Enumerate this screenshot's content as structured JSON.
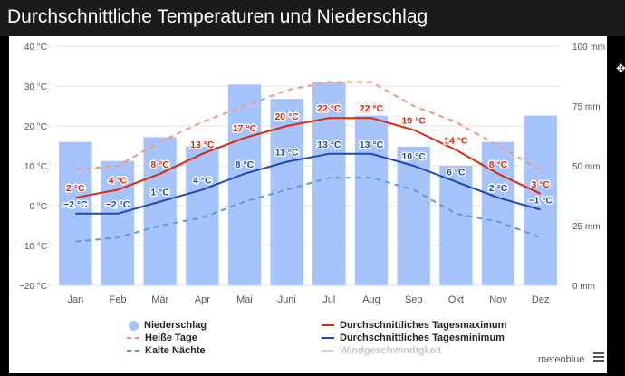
{
  "title": "Durchschnittliche Temperaturen und Niederschlag",
  "brand": "meteoblue",
  "icons": {
    "menu": "hamburger-menu-icon",
    "cursor": "move-cursor-icon"
  },
  "colors": {
    "precip": "#a6c4fb",
    "tmax": "#d62a0b",
    "tmin": "#1f46b5",
    "hot": "#f9957a",
    "cold": "#5c9bd9",
    "wind": "#cccccc"
  },
  "legend": [
    {
      "key": "precip",
      "label": "Niederschlag",
      "symbol": "circle"
    },
    {
      "key": "hot",
      "label": "Heiße Tage",
      "symbol": "dash"
    },
    {
      "key": "cold",
      "label": "Kalte Nächte",
      "symbol": "dash"
    },
    {
      "key": "tmax",
      "label": "Durchschnittliches Tagesmaximum",
      "symbol": "line"
    },
    {
      "key": "tmin",
      "label": "Durchschnittliches Tagesminimum",
      "symbol": "line"
    },
    {
      "key": "wind",
      "label": "Windgeschwindigkeit",
      "symbol": "line",
      "disabled": true
    }
  ],
  "chart_data": {
    "type": "bar+line",
    "categories": [
      "Jan",
      "Feb",
      "Mär",
      "Apr",
      "Mai",
      "Juni",
      "Jul",
      "Aug",
      "Sep",
      "Okt",
      "Nov",
      "Dez"
    ],
    "y_left": {
      "unit": "°C",
      "min": -20,
      "max": 40,
      "ticks": [
        -20,
        -10,
        0,
        10,
        20,
        30,
        40
      ],
      "tick_labels": [
        "−20 °C",
        "−10 °C",
        "0 °C",
        "10 °C",
        "20 °C",
        "30 °C",
        "40 °C"
      ]
    },
    "y_right": {
      "unit": "mm",
      "min": 0,
      "max": 100,
      "ticks": [
        0,
        25,
        50,
        75,
        100
      ],
      "tick_labels": [
        "0 mm",
        "25 mm",
        "50 mm",
        "75 mm",
        "100 mm"
      ]
    },
    "grid": true,
    "legend_position": "bottom",
    "series": [
      {
        "name": "Niederschlag",
        "key": "precip",
        "type": "bar",
        "axis": "right",
        "values": [
          60,
          52,
          62,
          58,
          84,
          78,
          85,
          71,
          58,
          50,
          60,
          71
        ]
      },
      {
        "name": "Heiße Tage",
        "key": "hot",
        "type": "line",
        "dashed": true,
        "axis": "left",
        "values": [
          9,
          10,
          16,
          21,
          25,
          29,
          31,
          31,
          25,
          21,
          15,
          9
        ]
      },
      {
        "name": "Durchschnittliches Tagesmaximum",
        "key": "tmax",
        "type": "line",
        "axis": "left",
        "values": [
          2,
          4,
          8,
          13,
          17,
          20,
          22,
          22,
          19,
          14,
          8,
          3
        ],
        "data_labels": [
          "2 °C",
          "4 °C",
          "8 °C",
          "13 °C",
          "17 °C",
          "20 °C",
          "22 °C",
          "22 °C",
          "19 °C",
          "14 °C",
          "8 °C",
          "3 °C"
        ]
      },
      {
        "name": "Durchschnittliches Tagesminimum",
        "key": "tmin",
        "type": "line",
        "axis": "left",
        "values": [
          -2,
          -2,
          1,
          4,
          8,
          11,
          13,
          13,
          10,
          6,
          2,
          -1
        ],
        "data_labels": [
          "−2 °C",
          "−2 °C",
          "1 °C",
          "4 °C",
          "8 °C",
          "11 °C",
          "13 °C",
          "13 °C",
          "10 °C",
          "6 °C",
          "2 °C",
          "−1 °C"
        ]
      },
      {
        "name": "Kalte Nächte",
        "key": "cold",
        "type": "line",
        "dashed": true,
        "axis": "left",
        "values": [
          -9,
          -8,
          -5,
          -3,
          1,
          4,
          7,
          7,
          4,
          -2,
          -4,
          -8
        ]
      }
    ]
  }
}
